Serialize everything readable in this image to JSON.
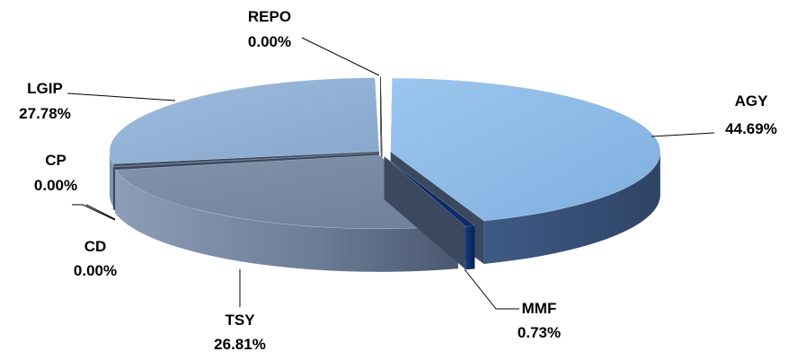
{
  "chart_data": {
    "type": "pie",
    "style": "3d-exploded",
    "title": "",
    "legend": "none",
    "slices": [
      {
        "label": "AGY",
        "pct_text": "44.69%",
        "value": 44.69,
        "color": "#8DB9E6"
      },
      {
        "label": "MMF",
        "pct_text": "0.73%",
        "value": 0.73,
        "color": "#0C2A66"
      },
      {
        "label": "TSY",
        "pct_text": "26.81%",
        "value": 26.81,
        "color": "#7A8AA4"
      },
      {
        "label": "CD",
        "pct_text": "0.00%",
        "value": 0.0,
        "color": "#5C6A80"
      },
      {
        "label": "CP",
        "pct_text": "0.00%",
        "value": 0.0,
        "color": "#6F7F99"
      },
      {
        "label": "LGIP",
        "pct_text": "27.78%",
        "value": 27.78,
        "color": "#93B3D6"
      },
      {
        "label": "REPO",
        "pct_text": "0.00%",
        "value": 0.0,
        "color": "#FFFFFF"
      }
    ]
  }
}
